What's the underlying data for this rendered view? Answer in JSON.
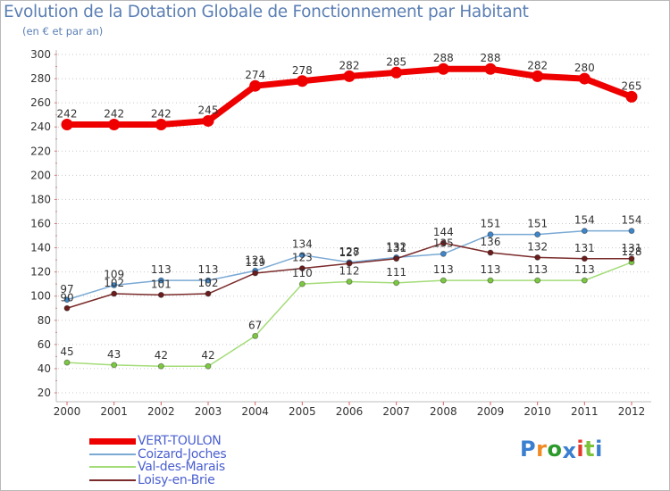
{
  "title": "Evolution de la Dotation Globale de Fonctionnement par Habitant",
  "subtitle": "(en € et par an)",
  "logo": {
    "text": "Proxiti",
    "colors": [
      "#3b7fd0",
      "#f08a24",
      "#2b9a2b",
      "#3b7fd0",
      "#e53a2a",
      "#7cc23a",
      "#3b7fd0"
    ]
  },
  "chart_data": {
    "type": "line",
    "title": "Evolution de la Dotation Globale de Fonctionnement par Habitant",
    "subtitle": "(en € et par an)",
    "xlabel": "",
    "ylabel": "",
    "categories": [
      "2000",
      "2001",
      "2002",
      "2003",
      "2004",
      "2005",
      "2006",
      "2007",
      "2008",
      "2009",
      "2010",
      "2011",
      "2012"
    ],
    "ylim": [
      20,
      300
    ],
    "yticks": [
      20,
      40,
      60,
      80,
      100,
      120,
      140,
      160,
      180,
      200,
      220,
      240,
      260,
      280,
      300
    ],
    "grid": "horizontal-dotted",
    "legend_position": "bottom-left",
    "series": [
      {
        "name": "VERT-TOULON",
        "color": "#ee0000",
        "marker": "#ee0000",
        "width": 7,
        "radius": 6,
        "labels": true,
        "values": [
          242,
          242,
          242,
          245,
          274,
          278,
          282,
          285,
          288,
          288,
          282,
          280,
          265
        ]
      },
      {
        "name": "Coizard-Joches",
        "color": "#7aa9d4",
        "marker": "#3f86c9",
        "width": 1.5,
        "radius": 3,
        "labels": true,
        "values": [
          97,
          109,
          113,
          113,
          121,
          134,
          128,
          132,
          135,
          151,
          151,
          154,
          154
        ]
      },
      {
        "name": "Val-des-Marais",
        "color": "#a4dc78",
        "marker": "#7dc843",
        "width": 1.5,
        "radius": 3,
        "labels": true,
        "values": [
          45,
          43,
          42,
          42,
          67,
          110,
          112,
          111,
          113,
          113,
          113,
          113,
          128
        ]
      },
      {
        "name": "Loisy-en-Brie",
        "color": "#7a2a2a",
        "marker": "#6b1d1d",
        "width": 1.5,
        "radius": 3,
        "labels": true,
        "values": [
          90,
          102,
          101,
          102,
          119,
          123,
          127,
          131,
          144,
          136,
          132,
          131,
          131
        ]
      }
    ]
  }
}
